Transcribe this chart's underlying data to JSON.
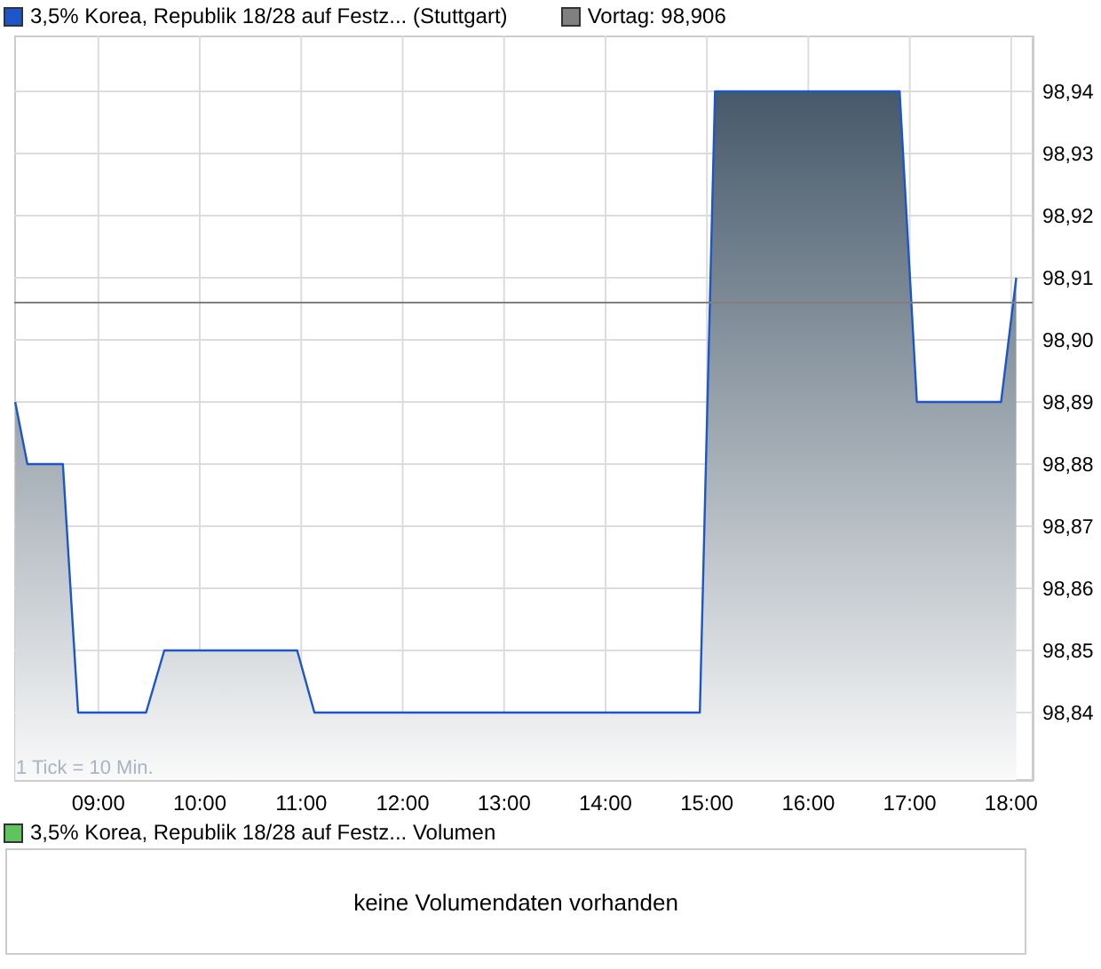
{
  "chart_data": [
    {
      "type": "area",
      "legend": "top left",
      "grid": true,
      "xlim": [
        8.17,
        18.22
      ],
      "xticks": [
        {
          "value": 9,
          "label": "09:00"
        },
        {
          "value": 10,
          "label": "10:00"
        },
        {
          "value": 11,
          "label": "11:00"
        },
        {
          "value": 12,
          "label": "12:00"
        },
        {
          "value": 13,
          "label": "13:00"
        },
        {
          "value": 14,
          "label": "14:00"
        },
        {
          "value": 15,
          "label": "15:00"
        },
        {
          "value": 16,
          "label": "16:00"
        },
        {
          "value": 17,
          "label": "17:00"
        },
        {
          "value": 18,
          "label": "18:00"
        }
      ],
      "ylim": [
        98.829,
        98.949
      ],
      "yticks": [
        {
          "value": 98.84,
          "label": "98,84"
        },
        {
          "value": 98.85,
          "label": "98,85"
        },
        {
          "value": 98.86,
          "label": "98,86"
        },
        {
          "value": 98.87,
          "label": "98,87"
        },
        {
          "value": 98.88,
          "label": "98,88"
        },
        {
          "value": 98.89,
          "label": "98,89"
        },
        {
          "value": 98.9,
          "label": "98,90"
        },
        {
          "value": 98.91,
          "label": "98,91"
        },
        {
          "value": 98.92,
          "label": "98,92"
        },
        {
          "value": 98.93,
          "label": "98,93"
        },
        {
          "value": 98.94,
          "label": "98,94"
        }
      ],
      "series": [
        {
          "name": "3,5% Korea, Republik 18/28 auf Festz... (Stuttgart)",
          "color": "#1c56c8",
          "x": [
            8.18,
            8.3,
            8.65,
            8.8,
            9.47,
            9.65,
            10.96,
            11.13,
            14.93,
            15.08,
            16.9,
            17.07,
            17.9,
            18.05
          ],
          "values": [
            98.89,
            98.88,
            98.88,
            98.84,
            98.84,
            98.85,
            98.85,
            98.84,
            98.84,
            98.94,
            98.94,
            98.89,
            98.89,
            98.91
          ]
        }
      ],
      "ref_lines": [
        {
          "axis": "y",
          "value": 98.906,
          "label": "Vortag: 98,906",
          "color": "#808080"
        }
      ],
      "annotations": [
        "1 Tick = 10 Min."
      ]
    },
    {
      "type": "other",
      "title": "3,5% Korea, Republik 18/28 auf Festz... Volumen",
      "annotations": [
        "keine Volumendaten vorhanden"
      ]
    }
  ]
}
